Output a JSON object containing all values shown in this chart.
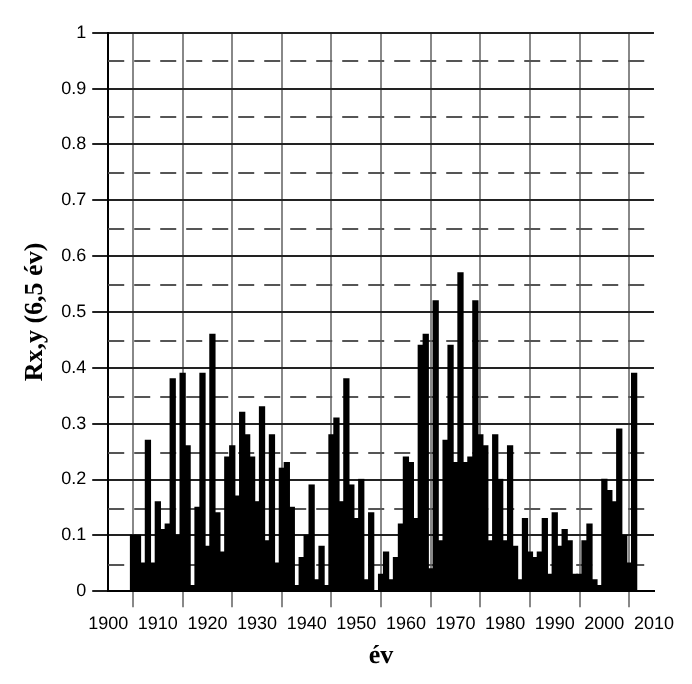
{
  "chart_data": {
    "type": "bar",
    "xlabel": "év",
    "ylabel": "Rx,y (6,5 év)",
    "x": [
      1905,
      1906,
      1907,
      1908,
      1909,
      1910,
      1911,
      1912,
      1913,
      1914,
      1915,
      1916,
      1917,
      1918,
      1919,
      1920,
      1921,
      1922,
      1923,
      1924,
      1925,
      1926,
      1927,
      1928,
      1929,
      1930,
      1931,
      1932,
      1933,
      1934,
      1935,
      1936,
      1937,
      1938,
      1939,
      1940,
      1941,
      1942,
      1943,
      1944,
      1945,
      1946,
      1947,
      1948,
      1949,
      1950,
      1951,
      1952,
      1953,
      1954,
      1955,
      1956,
      1957,
      1958,
      1959,
      1960,
      1961,
      1962,
      1963,
      1964,
      1965,
      1966,
      1967,
      1968,
      1969,
      1970,
      1971,
      1972,
      1973,
      1974,
      1975,
      1976,
      1977,
      1978,
      1979,
      1980,
      1981,
      1982,
      1983,
      1984,
      1985,
      1986,
      1987,
      1988,
      1989,
      1990,
      1991,
      1992,
      1993,
      1994,
      1995,
      1996,
      1997,
      1998,
      1999,
      2000,
      2001,
      2002,
      2003,
      2004,
      2005,
      2006
    ],
    "values": [
      0.1,
      0.1,
      0.05,
      0.27,
      0.05,
      0.16,
      0.11,
      0.12,
      0.38,
      0.1,
      0.39,
      0.26,
      0.01,
      0.15,
      0.39,
      0.08,
      0.46,
      0.14,
      0.07,
      0.24,
      0.26,
      0.17,
      0.32,
      0.28,
      0.24,
      0.16,
      0.33,
      0.09,
      0.28,
      0.05,
      0.22,
      0.23,
      0.15,
      0.01,
      0.06,
      0.1,
      0.19,
      0.02,
      0.08,
      0.01,
      0.28,
      0.31,
      0.16,
      0.38,
      0.19,
      0.13,
      0.2,
      0.02,
      0.14,
      0,
      0.03,
      0.07,
      0.02,
      0.06,
      0.12,
      0.24,
      0.23,
      0.13,
      0.44,
      0.46,
      0.04,
      0.52,
      0.09,
      0.27,
      0.44,
      0.23,
      0.57,
      0.23,
      0.24,
      0.52,
      0.28,
      0.26,
      0.09,
      0.28,
      0.2,
      0.09,
      0.26,
      0.08,
      0.02,
      0.13,
      0.07,
      0.06,
      0.07,
      0.13,
      0.03,
      0.14,
      0.08,
      0.11,
      0.09,
      0.03,
      0.03,
      0.09,
      0.12,
      0.02,
      0.01,
      0.2,
      0.18,
      0.16,
      0.29,
      0.1,
      0.05,
      0.39
    ],
    "color": "#000000",
    "xlim": [
      1900,
      2010
    ],
    "xticks": [
      1900,
      1910,
      1920,
      1930,
      1940,
      1950,
      1960,
      1970,
      1980,
      1990,
      2000,
      2010
    ],
    "ylim": [
      0,
      1
    ],
    "yticks": [
      0,
      {
        "value": 0.05,
        "label": null
      },
      0.1,
      {
        "value": 0.15,
        "label": null
      },
      0.2,
      {
        "value": 0.25,
        "label": null
      },
      0.3,
      {
        "value": 0.35,
        "label": null
      },
      0.4,
      {
        "value": 0.45,
        "label": null
      },
      0.5,
      {
        "value": 0.55,
        "label": null
      },
      0.6,
      {
        "value": 0.65,
        "label": null
      },
      0.7,
      {
        "value": 0.75,
        "label": null
      },
      0.8,
      {
        "value": 0.85,
        "label": null
      },
      0.9,
      {
        "value": 0.95,
        "label": null
      },
      1
    ],
    "grid": true,
    "legend": false
  }
}
